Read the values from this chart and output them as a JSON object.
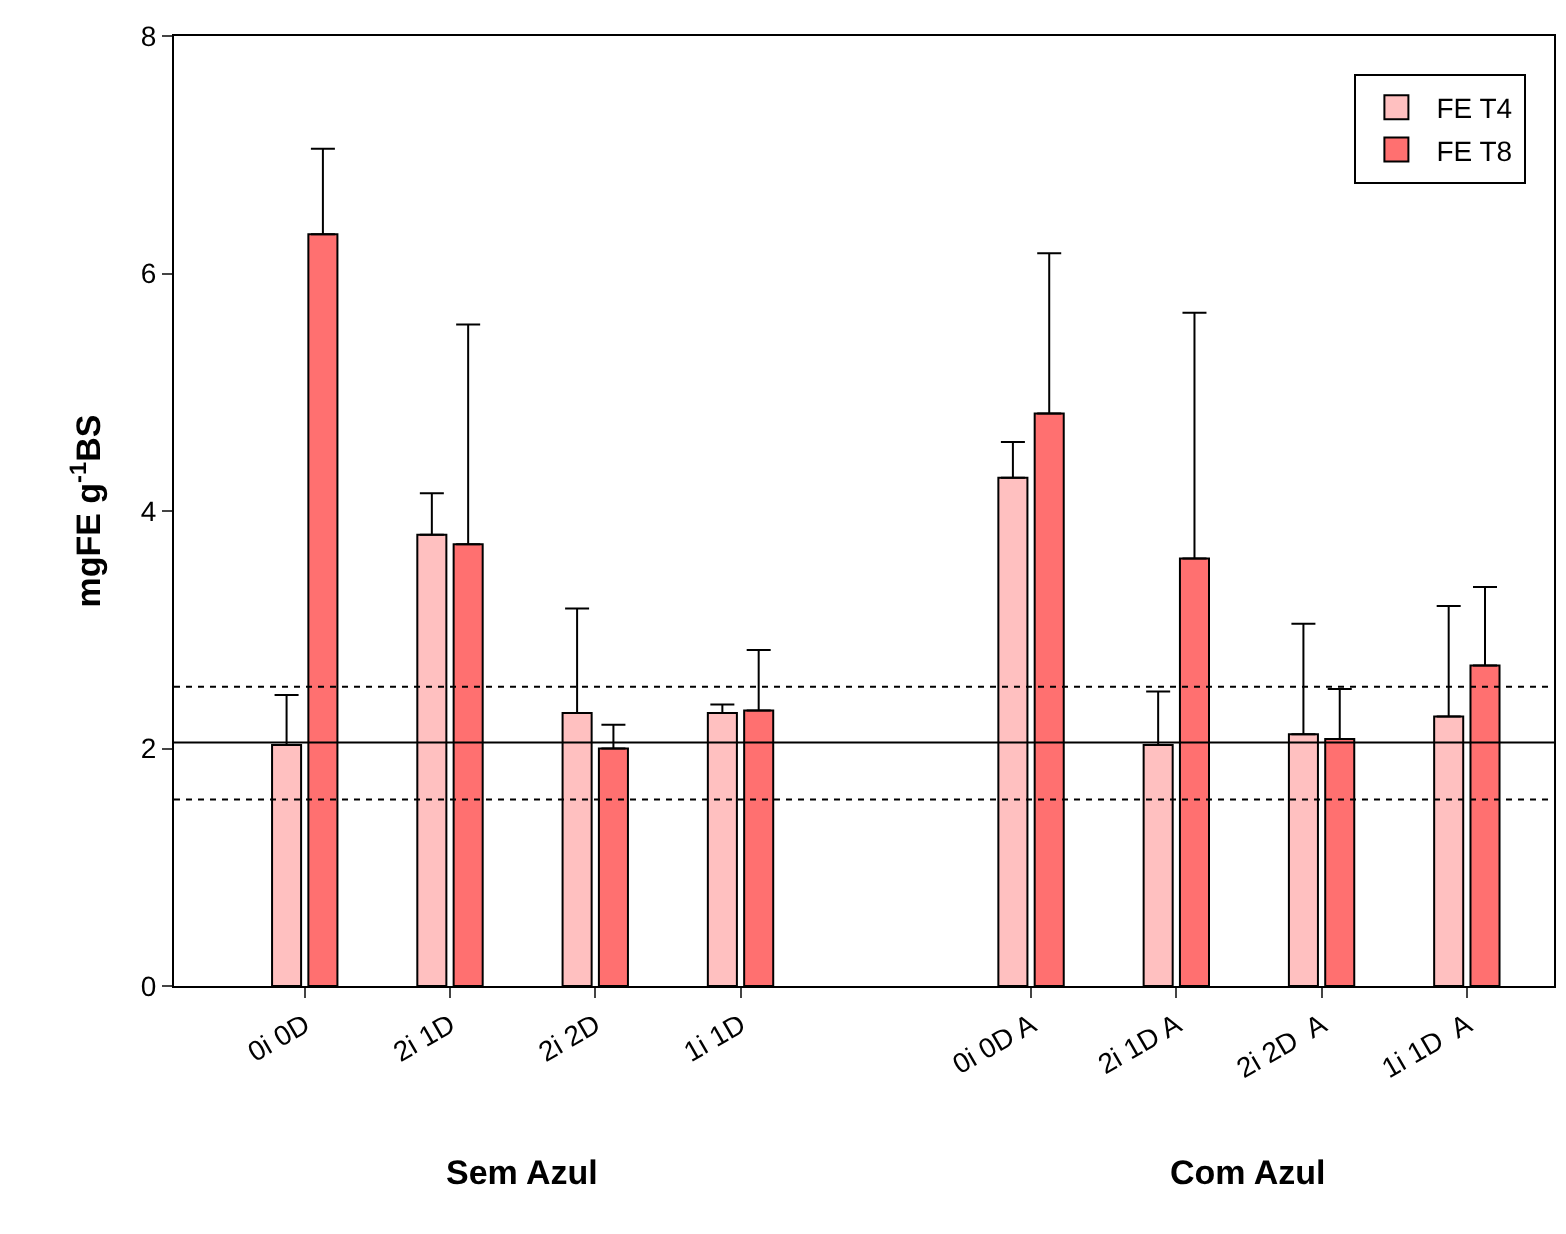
{
  "chart_data": {
    "type": "bar",
    "ylabel": "mgFE g$^{-1}$BS",
    "categories": [
      "0i 0D",
      "2i 1D",
      "2i 2D",
      "1i 1D",
      null,
      "0i 0D A",
      "2i 1D A",
      "2i 2D  A",
      "1i 1D  A"
    ],
    "series": [
      {
        "name": "FE T4",
        "color": "#ffc0c0",
        "values": [
          2.03,
          3.8,
          2.3,
          2.3,
          null,
          4.28,
          2.03,
          2.12,
          2.27
        ],
        "errors": [
          [
            2.03,
            2.45
          ],
          [
            3.8,
            4.15
          ],
          [
            2.3,
            3.18
          ],
          [
            2.3,
            2.37
          ],
          null,
          [
            4.28,
            4.58
          ],
          [
            2.03,
            2.48
          ],
          [
            2.12,
            3.05
          ],
          [
            2.27,
            3.2
          ]
        ]
      },
      {
        "name": "FE T8",
        "color": "#ff7070",
        "values": [
          6.33,
          3.72,
          2.0,
          2.32,
          null,
          4.82,
          3.6,
          2.08,
          2.7
        ],
        "errors": [
          [
            6.33,
            7.05
          ],
          [
            3.72,
            5.57
          ],
          [
            2.0,
            2.2
          ],
          [
            2.32,
            2.83
          ],
          null,
          [
            4.82,
            6.17
          ],
          [
            3.6,
            5.67
          ],
          [
            2.08,
            2.5
          ],
          [
            2.7,
            3.36
          ]
        ]
      }
    ],
    "ylim": [
      0,
      8
    ],
    "yticks": [
      0,
      2,
      4,
      6,
      8
    ],
    "legend": "top right",
    "ref_lines": [
      {
        "axis": "y",
        "value": 2.05,
        "line_style": "solid"
      },
      {
        "axis": "y",
        "value": 2.52,
        "line_style": "dotted"
      },
      {
        "axis": "y",
        "value": 1.57,
        "line_style": "dotted"
      }
    ],
    "annotations": [
      "Sem Azul",
      "Com Azul"
    ]
  }
}
